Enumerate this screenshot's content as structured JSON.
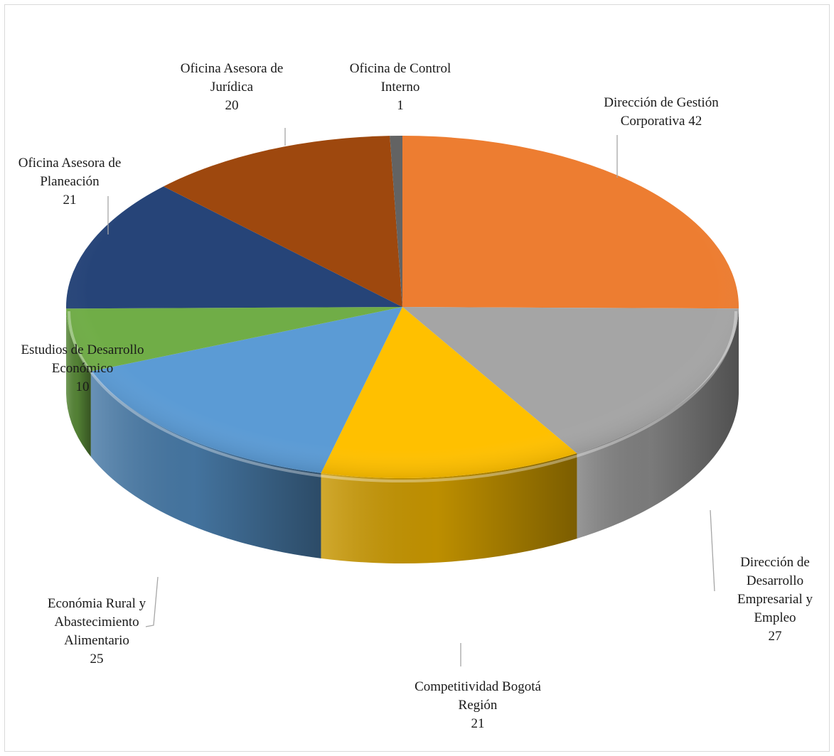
{
  "chart_data": {
    "type": "pie",
    "title": "",
    "three_d": true,
    "slices": [
      {
        "id": "gestion",
        "label_lines": [
          "Dirección de Gestión",
          "Corporativa 42"
        ],
        "value": 42,
        "color": "#ED7D31"
      },
      {
        "id": "empresarial",
        "label_lines": [
          "Dirección de",
          "Desarrollo",
          "Empresarial y",
          "Empleo",
          "27"
        ],
        "value": 27,
        "color": "#A5A5A5"
      },
      {
        "id": "competitividad",
        "label_lines": [
          "Competitividad Bogotá",
          "Región",
          "21"
        ],
        "value": 21,
        "color": "#FFC000"
      },
      {
        "id": "rural",
        "label_lines": [
          "Económia Rural y",
          "Abastecimiento",
          "Alimentario",
          "25"
        ],
        "value": 25,
        "color": "#5B9BD5"
      },
      {
        "id": "estudios",
        "label_lines": [
          "Estudios de Desarrollo",
          "Económico",
          "10"
        ],
        "value": 10,
        "color": "#70AD47"
      },
      {
        "id": "planeacion",
        "label_lines": [
          "Oficina Asesora de",
          "Planeación",
          "21"
        ],
        "value": 21,
        "color": "#264478"
      },
      {
        "id": "juridica",
        "label_lines": [
          "Oficina Asesora de",
          "Jurídica",
          "20"
        ],
        "value": 20,
        "color": "#9E480E"
      },
      {
        "id": "control",
        "label_lines": [
          "Oficina de Control",
          "Interno",
          "1"
        ],
        "value": 1,
        "color": "#636363"
      }
    ]
  }
}
